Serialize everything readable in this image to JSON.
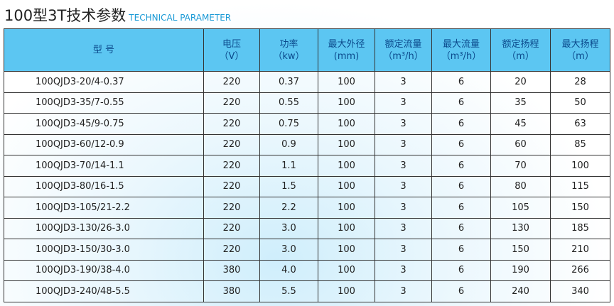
{
  "header": {
    "title": "100型3T技术参数",
    "subtitle": "TECHNICAL PARAMETER"
  },
  "table": {
    "columns": [
      [
        "型 号"
      ],
      [
        "电压",
        "（V）"
      ],
      [
        "功率",
        "（kw）"
      ],
      [
        "最大外径",
        "(mm)"
      ],
      [
        "额定流量",
        "（m³/h）"
      ],
      [
        "最大流量",
        "（m³/h）"
      ],
      [
        "额定扬程",
        "（m）"
      ],
      [
        "最大扬程",
        "（m）"
      ]
    ],
    "rows": [
      [
        "100QJD3-20/4-0.37",
        "220",
        "0.37",
        "100",
        "3",
        "6",
        "20",
        "28"
      ],
      [
        "100QJD3-35/7-0.55",
        "220",
        "0.55",
        "100",
        "3",
        "6",
        "35",
        "50"
      ],
      [
        "100QJD3-45/9-0.75",
        "220",
        "0.75",
        "100",
        "3",
        "6",
        "45",
        "63"
      ],
      [
        "100QJD3-60/12-0.9",
        "220",
        "0.9",
        "100",
        "3",
        "6",
        "60",
        "85"
      ],
      [
        "100QJD3-70/14-1.1",
        "220",
        "1.1",
        "100",
        "3",
        "6",
        "70",
        "100"
      ],
      [
        "100QJD3-80/16-1.5",
        "220",
        "1.5",
        "100",
        "3",
        "6",
        "80",
        "115"
      ],
      [
        "100QJD3-105/21-2.2",
        "220",
        "2.2",
        "100",
        "3",
        "6",
        "105",
        "150"
      ],
      [
        "100QJD3-130/26-3.0",
        "220",
        "3.0",
        "100",
        "3",
        "6",
        "130",
        "185"
      ],
      [
        "100QJD3-150/30-3.0",
        "220",
        "3.0",
        "100",
        "3",
        "6",
        "150",
        "210"
      ],
      [
        "100QJD3-190/38-4.0",
        "380",
        "4.0",
        "100",
        "3",
        "6",
        "190",
        "266"
      ],
      [
        "100QJD3-240/48-5.5",
        "380",
        "5.5",
        "100",
        "3",
        "6",
        "240",
        "340"
      ]
    ]
  }
}
